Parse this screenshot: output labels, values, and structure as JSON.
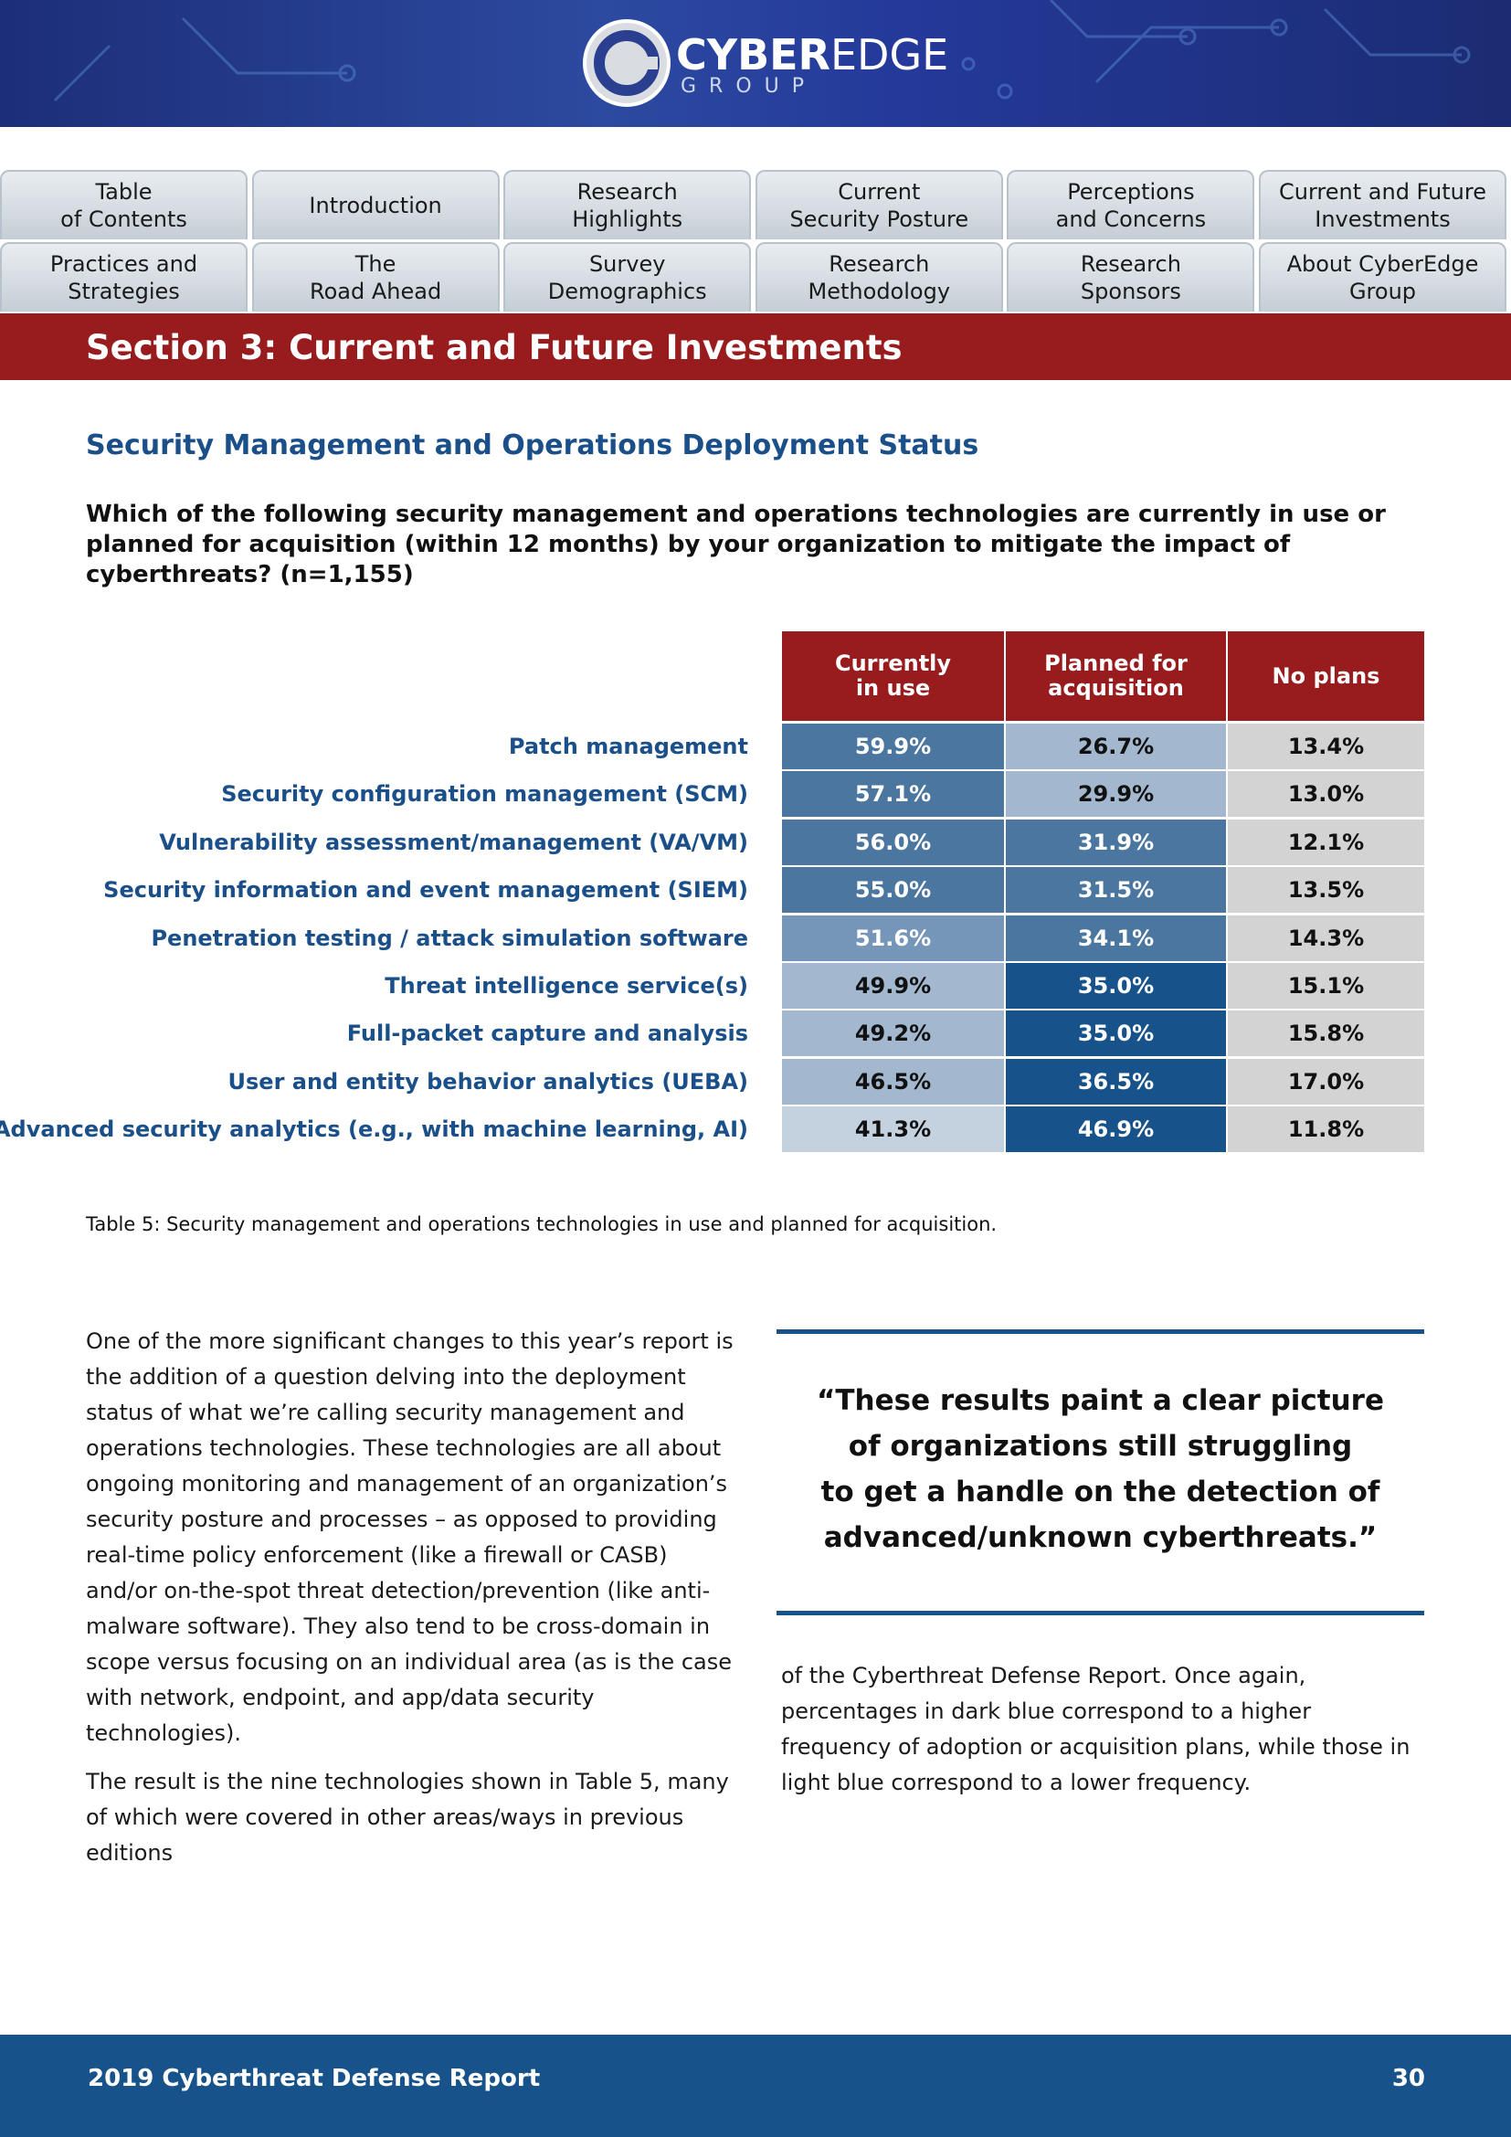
{
  "header": {
    "logo": {
      "bold": "CYBER",
      "light": "EDGE",
      "sub": "GROUP"
    }
  },
  "nav": {
    "rows": [
      [
        [
          "Table",
          "of Contents"
        ],
        [
          "Introduction"
        ],
        [
          "Research",
          "Highlights"
        ],
        [
          "Current",
          "Security Posture"
        ],
        [
          "Perceptions",
          "and Concerns"
        ],
        [
          "Current and Future",
          "Investments"
        ]
      ],
      [
        [
          "Practices and",
          "Strategies"
        ],
        [
          "The",
          "Road Ahead"
        ],
        [
          "Survey",
          "Demographics"
        ],
        [
          "Research",
          "Methodology"
        ],
        [
          "Research",
          "Sponsors"
        ],
        [
          "About CyberEdge",
          "Group"
        ]
      ]
    ]
  },
  "section_title": "Section 3: Current and Future Investments",
  "heading": "Security Management and Operations Deployment Status",
  "question": "Which of the following security management and operations technologies are currently in use or planned for acquisition (within 12 months) by your organization to mitigate the impact of cyberthreats? (n=1,155)",
  "table": {
    "header_color": "#981b1e",
    "columns": [
      [
        "Currently",
        "in use"
      ],
      [
        "Planned for",
        "acquisition"
      ],
      [
        "No plans"
      ]
    ],
    "rows": [
      {
        "label": "Patch management",
        "cells": [
          "59.9%",
          "26.7%",
          "13.4%"
        ],
        "colors": [
          "#4a76a0",
          "#a3b8cf",
          "#d3d3d3"
        ]
      },
      {
        "label": "Security configuration management (SCM)",
        "cells": [
          "57.1%",
          "29.9%",
          "13.0%"
        ],
        "colors": [
          "#4a76a0",
          "#a3b8cf",
          "#d3d3d3"
        ]
      },
      {
        "label": "Vulnerability assessment/management (VA/VM)",
        "cells": [
          "56.0%",
          "31.9%",
          "12.1%"
        ],
        "colors": [
          "#4a76a0",
          "#4a76a0",
          "#d3d3d3"
        ]
      },
      {
        "label": "Security information and event management (SIEM)",
        "cells": [
          "55.0%",
          "31.5%",
          "13.5%"
        ],
        "colors": [
          "#4a76a0",
          "#4a76a0",
          "#d3d3d3"
        ]
      },
      {
        "label": "Penetration testing / attack simulation software",
        "cells": [
          "51.6%",
          "34.1%",
          "14.3%"
        ],
        "colors": [
          "#7596b8",
          "#4a76a0",
          "#d3d3d3"
        ]
      },
      {
        "label": "Threat intelligence service(s)",
        "cells": [
          "49.9%",
          "35.0%",
          "15.1%"
        ],
        "colors": [
          "#a3b8cf",
          "#17538a",
          "#d3d3d3"
        ]
      },
      {
        "label": "Full-packet capture and analysis",
        "cells": [
          "49.2%",
          "35.0%",
          "15.8%"
        ],
        "colors": [
          "#a3b8cf",
          "#17538a",
          "#d3d3d3"
        ]
      },
      {
        "label": "User and entity behavior analytics (UEBA)",
        "cells": [
          "46.5%",
          "36.5%",
          "17.0%"
        ],
        "colors": [
          "#a3b8cf",
          "#17538a",
          "#d3d3d3"
        ]
      },
      {
        "label": "Advanced security analytics (e.g., with machine learning, AI)",
        "cells": [
          "41.3%",
          "46.9%",
          "11.8%"
        ],
        "colors": [
          "#c4d1df",
          "#17538a",
          "#d3d3d3"
        ]
      }
    ],
    "caption": "Table 5: Security management and operations technologies in use and planned for acquisition."
  },
  "body": {
    "left": [
      "One of the more significant changes to this year’s report is the addition of a question delving into the deployment status of what we’re calling security management and operations technologies. These technologies are all about ongoing monitoring and management of an organization’s security posture and processes – as opposed to providing real-time policy enforcement (like a firewall or CASB) and/or on-the-spot threat detection/prevention (like anti-malware software). They also tend to be cross-domain in scope versus focusing on an individual area (as is the case with network, endpoint, and app/data security technologies).",
      "The result is the nine technologies shown in Table 5, many of which were covered in other areas/ways in previous editions"
    ],
    "right": "of the Cyberthreat Defense Report. Once again, percentages in dark blue correspond to a higher frequency of adoption or acquisition plans, while those in light blue correspond to a lower frequency."
  },
  "quote": [
    "“These results paint a clear picture",
    "of organizations still struggling",
    "to get a handle on the detection of",
    "advanced/unknown cyberthreats.”"
  ],
  "footer": {
    "title": "2019 Cyberthreat Defense Report",
    "page": "30"
  }
}
